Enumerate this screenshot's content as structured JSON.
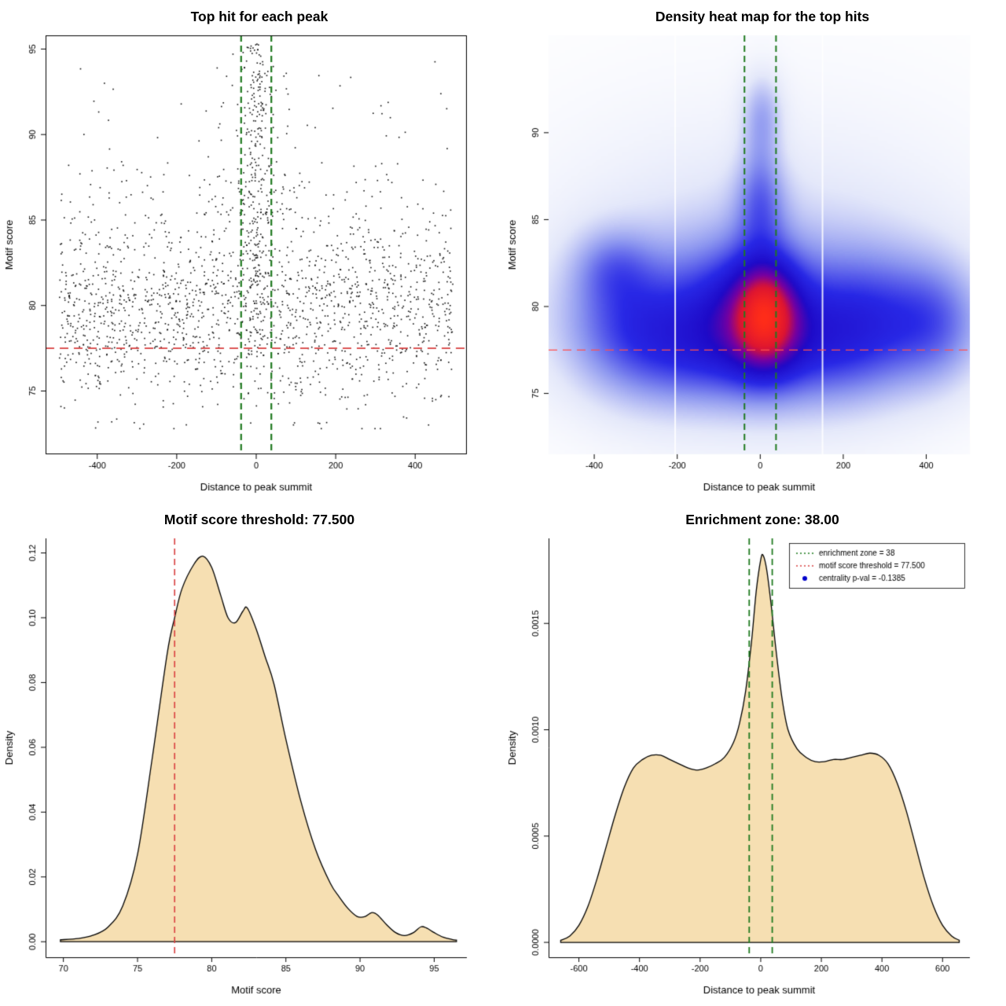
{
  "figure": {
    "background": "#ffffff",
    "accent_colors": {
      "enrichment_green": "#1f7a1f",
      "threshold_red": "#d94040",
      "density_fill": "#f6dfb2",
      "point_black": "#111111",
      "legend_blue": "#0000cc"
    }
  },
  "chart_data": [
    {
      "type": "scatter",
      "title": "Top hit for each peak",
      "xlabel": "Distance to peak summit",
      "ylabel": "Motif score",
      "xlim": [
        -530,
        530
      ],
      "ylim": [
        71.3,
        95.8
      ],
      "xticks": {
        "values": [
          -400,
          -200,
          0,
          200,
          400
        ],
        "labels": [
          "-400",
          "-200",
          "0",
          "200",
          "400"
        ]
      },
      "yticks": {
        "values": [
          75,
          80,
          85,
          90,
          95
        ],
        "labels": [
          "75",
          "80",
          "85",
          "90",
          "95"
        ]
      },
      "box": "full",
      "point_color": "#111111",
      "points_model": {
        "seed": 1337,
        "n_background": 1750,
        "n_central": 250,
        "n_plume": 85
      },
      "vlines": {
        "x": [
          -38,
          38
        ],
        "color": "#1f7a1f",
        "style": "dashed",
        "width": 2.2
      },
      "hlines": {
        "y": [
          77.5
        ],
        "color": "#d94040",
        "style": "dashed",
        "width": 1.6
      }
    },
    {
      "type": "heatmap",
      "title": "Density heat map for the top hits",
      "xlabel": "Distance to peak summit",
      "ylabel": "Motif score",
      "xlim": [
        -510,
        505
      ],
      "ylim": [
        71.5,
        95.6
      ],
      "xticks": {
        "values": [
          -400,
          -200,
          0,
          200,
          400
        ],
        "labels": [
          "-400",
          "-200",
          "0",
          "200",
          "400"
        ]
      },
      "yticks": {
        "values": [
          75,
          80,
          85,
          90
        ],
        "labels": [
          "75",
          "80",
          "85",
          "90"
        ]
      },
      "box": "none",
      "kernels": [
        {
          "x": 15,
          "y": 79.6,
          "sx": 55,
          "sy": 2.2,
          "w": 1.0
        },
        {
          "x": -50,
          "y": 79.8,
          "sx": 95,
          "sy": 2.6,
          "w": 0.55
        },
        {
          "x": -300,
          "y": 79.0,
          "sx": 120,
          "sy": 2.7,
          "w": 0.52
        },
        {
          "x": -355,
          "y": 82.3,
          "sx": 65,
          "sy": 1.5,
          "w": 0.28
        },
        {
          "x": 255,
          "y": 79.2,
          "sx": 140,
          "sy": 2.7,
          "w": 0.55
        },
        {
          "x": 430,
          "y": 79.0,
          "sx": 75,
          "sy": 2.3,
          "w": 0.3
        },
        {
          "x": 0,
          "y": 85.8,
          "sx": 44,
          "sy": 1.9,
          "w": 0.33
        },
        {
          "x": 0,
          "y": 88.4,
          "sx": 32,
          "sy": 2.4,
          "w": 0.16
        },
        {
          "x": 5,
          "y": 91.2,
          "sx": 34,
          "sy": 1.6,
          "w": 0.24
        },
        {
          "x": 0,
          "y": 79.6,
          "sx": 300,
          "sy": 4.6,
          "w": 0.27
        },
        {
          "x": 0,
          "y": 84.5,
          "sx": 430,
          "sy": 6.5,
          "w": 0.1
        },
        {
          "x": -150,
          "y": 77.2,
          "sx": 130,
          "sy": 2.1,
          "w": 0.28
        },
        {
          "x": 110,
          "y": 77.4,
          "sx": 130,
          "sy": 2.2,
          "w": 0.28
        }
      ],
      "colormap": [
        [
          0.0,
          "#ffffff"
        ],
        [
          0.1,
          "#e4e8fa"
        ],
        [
          0.25,
          "#8c96f0"
        ],
        [
          0.42,
          "#2828e6"
        ],
        [
          0.57,
          "#1e0ac8"
        ],
        [
          0.7,
          "#7800a0"
        ],
        [
          0.82,
          "#dc1432"
        ],
        [
          1.0,
          "#ff2d19"
        ]
      ],
      "white_streaks_x": [
        -205,
        150
      ],
      "vlines": {
        "x": [
          -38,
          38
        ],
        "color": "#1f7a1f",
        "style": "dashed",
        "width": 2
      },
      "hlines": {
        "y": [
          77.5
        ],
        "color": "#ff5050",
        "style": "dashed",
        "width": 1.2
      }
    },
    {
      "type": "density",
      "title": "Motif score threshold: 77.500",
      "xlabel": "Motif score",
      "ylabel": "Density",
      "xlim": [
        68.8,
        97.2
      ],
      "ylim": [
        -0.0048,
        0.1245
      ],
      "xticks": {
        "values": [
          70,
          75,
          80,
          85,
          90,
          95
        ],
        "labels": [
          "70",
          "75",
          "80",
          "85",
          "90",
          "95"
        ]
      },
      "yticks": {
        "values": [
          0.0,
          0.02,
          0.04,
          0.06,
          0.08,
          0.1,
          0.12
        ],
        "labels": [
          "0.00",
          "0.02",
          "0.04",
          "0.06",
          "0.08",
          "0.10",
          "0.12"
        ]
      },
      "box": "lb",
      "fill": "#f6dfb2",
      "curve": [
        [
          69.8,
          0.0006
        ],
        [
          71,
          0.001
        ],
        [
          72,
          0.002
        ],
        [
          73,
          0.0045
        ],
        [
          74,
          0.011
        ],
        [
          75,
          0.027
        ],
        [
          76,
          0.057
        ],
        [
          77,
          0.089
        ],
        [
          77.5,
          0.1
        ],
        [
          78,
          0.109
        ],
        [
          78.8,
          0.1165
        ],
        [
          79.4,
          0.119
        ],
        [
          80,
          0.1155
        ],
        [
          80.6,
          0.107
        ],
        [
          81.1,
          0.1
        ],
        [
          81.6,
          0.0985
        ],
        [
          82.1,
          0.102
        ],
        [
          82.4,
          0.103
        ],
        [
          83,
          0.0965
        ],
        [
          83.6,
          0.088
        ],
        [
          84.2,
          0.0795
        ],
        [
          85,
          0.0625
        ],
        [
          86,
          0.0435
        ],
        [
          87,
          0.0285
        ],
        [
          88,
          0.018
        ],
        [
          88.6,
          0.0138
        ],
        [
          89.2,
          0.0102
        ],
        [
          89.8,
          0.0078
        ],
        [
          90.3,
          0.0077
        ],
        [
          90.8,
          0.009
        ],
        [
          91.2,
          0.0082
        ],
        [
          91.8,
          0.0052
        ],
        [
          92.4,
          0.0028
        ],
        [
          93,
          0.0019
        ],
        [
          93.6,
          0.0028
        ],
        [
          94.1,
          0.0046
        ],
        [
          94.5,
          0.0042
        ],
        [
          95,
          0.0028
        ],
        [
          95.6,
          0.0014
        ],
        [
          96.2,
          0.0007
        ],
        [
          96.5,
          0.0005
        ]
      ],
      "vlines": {
        "x": [
          77.5
        ],
        "color": "#d94040",
        "style": "dashed",
        "width": 1.6
      }
    },
    {
      "type": "density",
      "title": "Enrichment zone: 38.00",
      "xlabel": "Distance to peak summit",
      "ylabel": "Density",
      "xlim": [
        -700,
        690
      ],
      "ylim": [
        -7e-05,
        0.0019
      ],
      "xticks": {
        "values": [
          -600,
          -400,
          -200,
          0,
          200,
          400,
          600
        ],
        "labels": [
          "-600",
          "-400",
          "-200",
          "0",
          "200",
          "400",
          "600"
        ]
      },
      "yticks": {
        "values": [
          0.0,
          0.0005,
          0.001,
          0.0015
        ],
        "labels": [
          "0.0000",
          "0.0005",
          "0.0010",
          "0.0015"
        ]
      },
      "box": "lb",
      "fill": "#f6dfb2",
      "curve": [
        [
          -660,
          1e-05
        ],
        [
          -630,
          3e-05
        ],
        [
          -600,
          8e-05
        ],
        [
          -570,
          0.00017
        ],
        [
          -540,
          0.0003
        ],
        [
          -510,
          0.00045
        ],
        [
          -480,
          0.0006
        ],
        [
          -450,
          0.00073
        ],
        [
          -420,
          0.00082
        ],
        [
          -390,
          0.00086
        ],
        [
          -360,
          0.00088
        ],
        [
          -330,
          0.00088
        ],
        [
          -300,
          0.00086
        ],
        [
          -270,
          0.00084
        ],
        [
          -240,
          0.00082
        ],
        [
          -210,
          0.00081
        ],
        [
          -180,
          0.00082
        ],
        [
          -150,
          0.00084
        ],
        [
          -120,
          0.00087
        ],
        [
          -90,
          0.00094
        ],
        [
          -70,
          0.00103
        ],
        [
          -50,
          0.00118
        ],
        [
          -30,
          0.00142
        ],
        [
          -15,
          0.00165
        ],
        [
          0,
          0.0018
        ],
        [
          8,
          0.00182
        ],
        [
          20,
          0.00175
        ],
        [
          35,
          0.00158
        ],
        [
          50,
          0.00138
        ],
        [
          70,
          0.00115
        ],
        [
          90,
          0.001
        ],
        [
          120,
          0.00091
        ],
        [
          150,
          0.00087
        ],
        [
          180,
          0.00085
        ],
        [
          210,
          0.00085
        ],
        [
          240,
          0.00086
        ],
        [
          270,
          0.00086
        ],
        [
          300,
          0.00087
        ],
        [
          330,
          0.00088
        ],
        [
          360,
          0.00089
        ],
        [
          390,
          0.00088
        ],
        [
          420,
          0.00084
        ],
        [
          450,
          0.00075
        ],
        [
          480,
          0.00062
        ],
        [
          510,
          0.00046
        ],
        [
          540,
          0.0003
        ],
        [
          570,
          0.00017
        ],
        [
          600,
          8e-05
        ],
        [
          630,
          3e-05
        ],
        [
          655,
          1e-05
        ]
      ],
      "vlines": {
        "x": [
          -38,
          38
        ],
        "color": "#1f7a1f",
        "style": "dashed",
        "width": 1.8
      },
      "legend": {
        "position": "topright",
        "entries": [
          {
            "label": "enrichment zone = 38",
            "color": "#1f7a1f",
            "symbol": "dotted-line"
          },
          {
            "label": "motif score threshold = 77.500",
            "color": "#d94040",
            "symbol": "dotted-line"
          },
          {
            "label": "centrality p-val = -0.1385",
            "color": "#0000cc",
            "symbol": "point"
          }
        ]
      }
    }
  ]
}
